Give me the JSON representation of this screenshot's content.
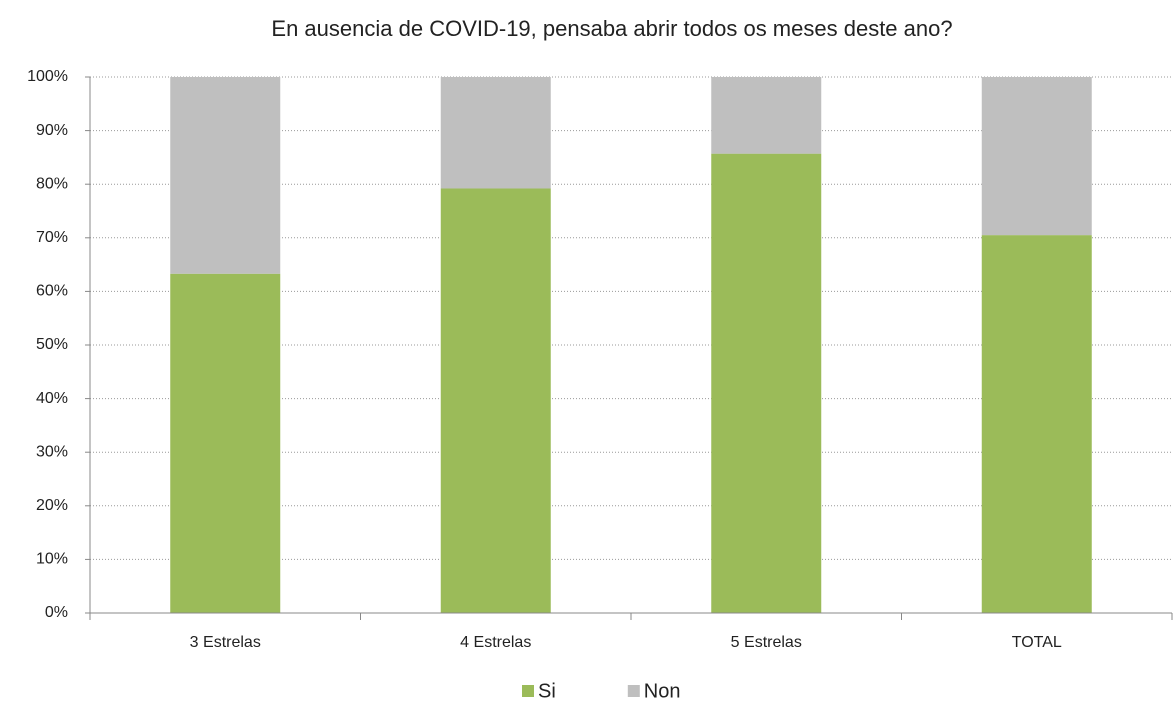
{
  "chart_data": {
    "type": "stacked-bar",
    "title": "En ausencia de COVID-19, pensaba abrir todos os meses deste ano?",
    "categories": [
      "3 Estrelas",
      "4 Estrelas",
      "5 Estrelas",
      "TOTAL"
    ],
    "series": [
      {
        "name": "Si",
        "color": "#9bbb59",
        "values": [
          63.3,
          79.2,
          85.7,
          70.5
        ]
      },
      {
        "name": "Non",
        "color": "#bfbfbf",
        "values": [
          36.7,
          20.8,
          14.3,
          29.5
        ]
      }
    ],
    "ylim": [
      0,
      100
    ],
    "yticks": [
      {
        "value": 0,
        "label": "0%"
      },
      {
        "value": 10,
        "label": "10%"
      },
      {
        "value": 20,
        "label": "20%"
      },
      {
        "value": 30,
        "label": "30%"
      },
      {
        "value": 40,
        "label": "40%"
      },
      {
        "value": 50,
        "label": "50%"
      },
      {
        "value": 60,
        "label": "60%"
      },
      {
        "value": 70,
        "label": "70%"
      },
      {
        "value": 80,
        "label": "80%"
      },
      {
        "value": 90,
        "label": "90%"
      },
      {
        "value": 100,
        "label": "100%"
      }
    ],
    "grid": true,
    "legend": "bottom"
  }
}
